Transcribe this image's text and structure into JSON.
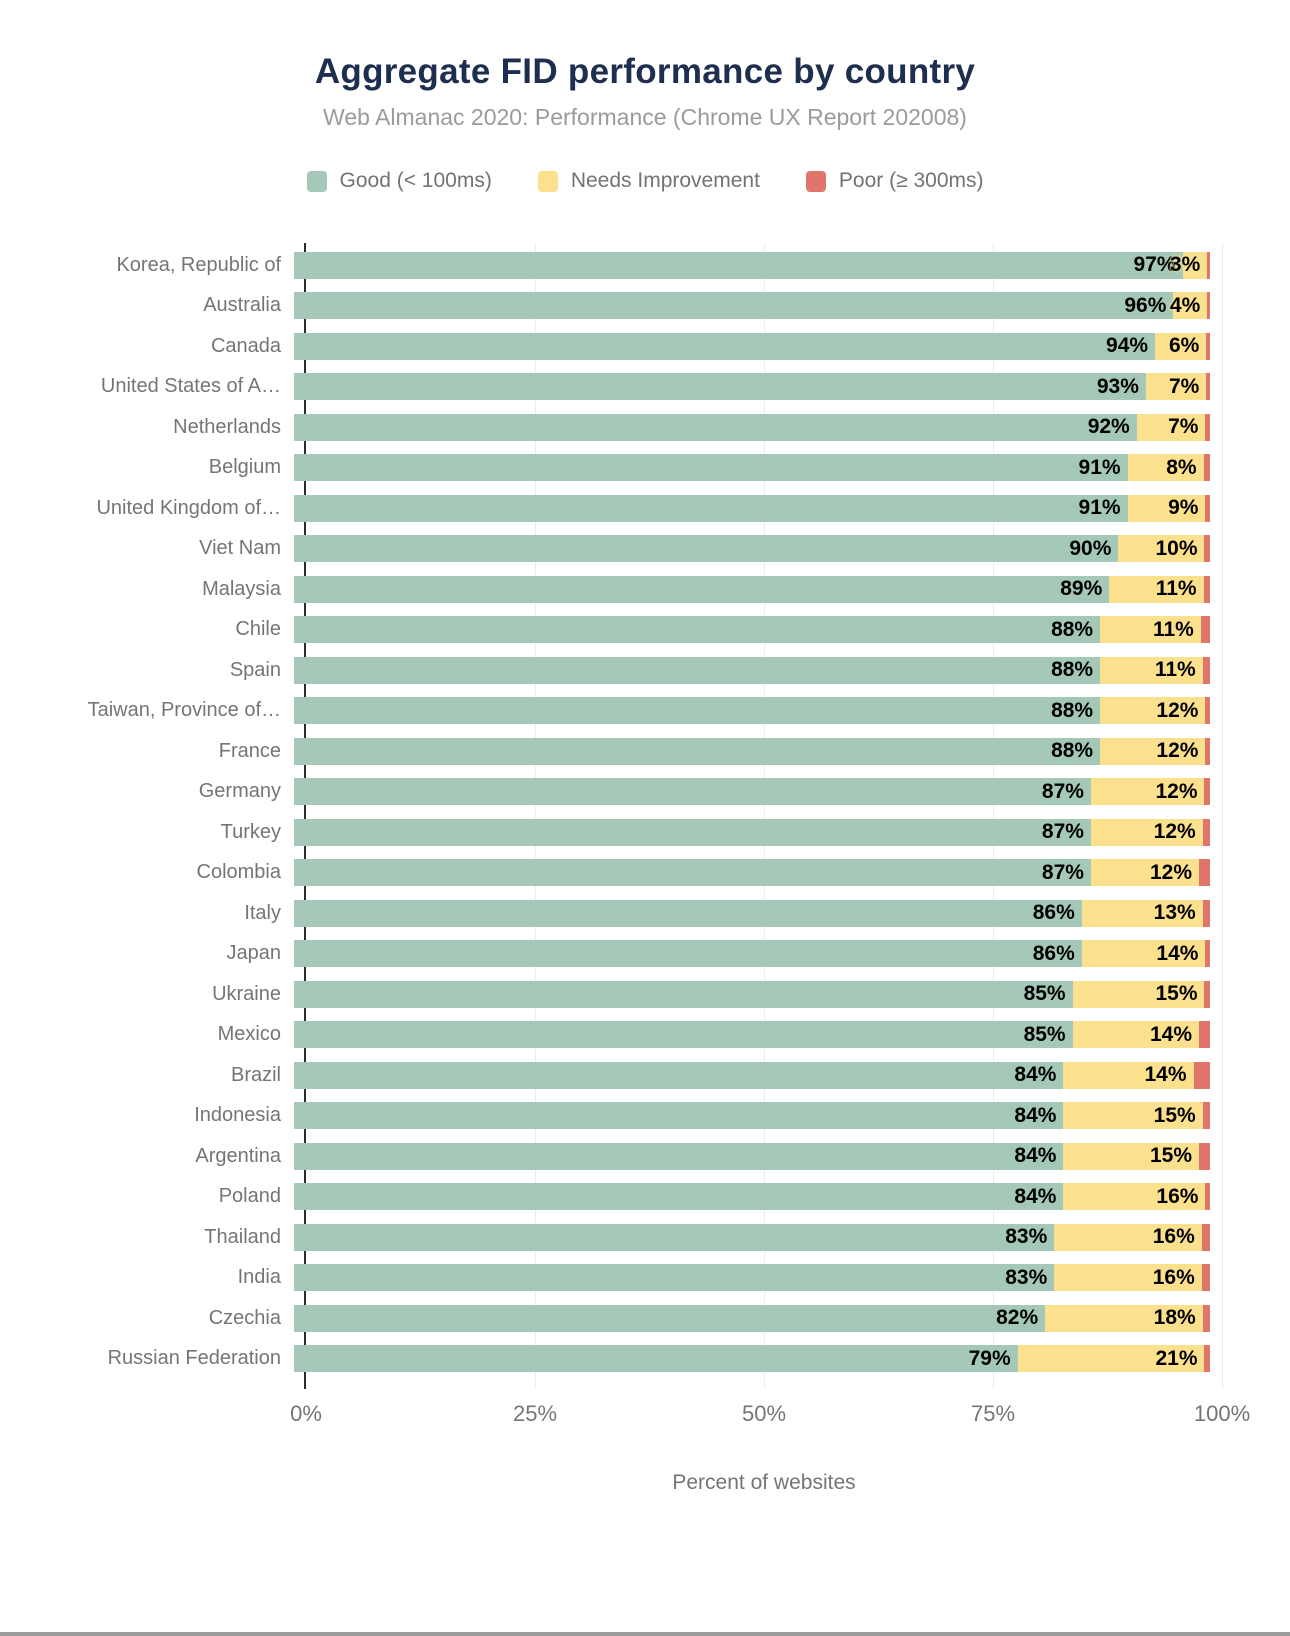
{
  "chart_data": {
    "type": "bar",
    "orientation": "horizontal",
    "stacked": true,
    "title": "Aggregate FID performance by country",
    "subtitle": "Web Almanac 2020: Performance (Chrome UX Report 202008)",
    "xlabel": "Percent of websites",
    "xlim": [
      0,
      100
    ],
    "x_ticks": [
      "0%",
      "25%",
      "50%",
      "75%",
      "100%"
    ],
    "legend_position": "top",
    "grid": "vertical-light",
    "categories": [
      "Korea, Republic of",
      "Australia",
      "Canada",
      "United States of A…",
      "Netherlands",
      "Belgium",
      "United Kingdom of…",
      "Viet Nam",
      "Malaysia",
      "Chile",
      "Spain",
      "Taiwan, Province of…",
      "France",
      "Germany",
      "Turkey",
      "Colombia",
      "Italy",
      "Japan",
      "Ukraine",
      "Mexico",
      "Brazil",
      "Indonesia",
      "Argentina",
      "Poland",
      "Thailand",
      "India",
      "Czechia",
      "Russian Federation"
    ],
    "series": [
      {
        "name": "Good (< 100ms)",
        "color": "#a5c8b8",
        "values": [
          97,
          96,
          94,
          93,
          92,
          91,
          91,
          90,
          89,
          88,
          88,
          88,
          88,
          87,
          87,
          87,
          86,
          86,
          85,
          85,
          84,
          84,
          84,
          84,
          83,
          83,
          82,
          79
        ]
      },
      {
        "name": "Needs Improvement",
        "color": "#fbe08e",
        "values": [
          3,
          4,
          6,
          7,
          7,
          8,
          9,
          10,
          11,
          11,
          11,
          12,
          12,
          12,
          12,
          12,
          13,
          14,
          15,
          14,
          14,
          15,
          15,
          16,
          16,
          16,
          18,
          21
        ]
      },
      {
        "name": "Poor (≥ 300ms)",
        "color": "#e0756b",
        "estimated": true,
        "values": [
          0.3,
          0.3,
          0.4,
          0.4,
          0.5,
          0.7,
          0.5,
          0.6,
          0.7,
          1.0,
          0.8,
          0.5,
          0.5,
          0.6,
          0.8,
          1.2,
          0.8,
          0.5,
          0.6,
          1.2,
          1.8,
          0.8,
          1.2,
          0.5,
          0.9,
          0.9,
          0.8,
          0.6
        ]
      }
    ]
  }
}
